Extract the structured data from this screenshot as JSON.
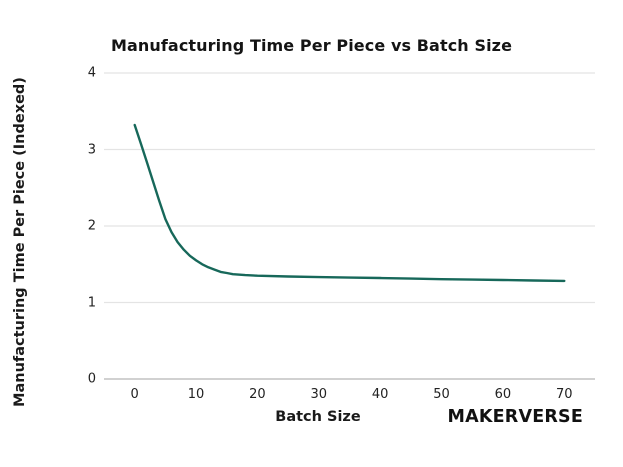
{
  "chart": {
    "title": "Manufacturing Time Per Piece vs Batch Size",
    "x_axis_label": "Batch Size",
    "y_axis_label": "Manufacturing Time Per Piece (Indexed)",
    "branding": "MAKERVERSE"
  },
  "chart_data": {
    "type": "line",
    "title": "Manufacturing Time Per Piece vs Batch Size",
    "xlabel": "Batch Size",
    "ylabel": "Manufacturing Time Per Piece (Indexed)",
    "x_ticks": [
      0,
      10,
      20,
      30,
      40,
      50,
      60,
      70
    ],
    "y_ticks": [
      0,
      1,
      2,
      3,
      4
    ],
    "xlim": [
      -5,
      75
    ],
    "ylim": [
      0,
      4
    ],
    "grid": "horizontal-only",
    "legend": false,
    "line_color": "#17685a",
    "grid_color": "#e4e4e4",
    "baseline_color": "#c2c2c2",
    "series": [
      {
        "name": "Manufacturing time per piece (indexed)",
        "points": [
          [
            0,
            3.32
          ],
          [
            1,
            3.08
          ],
          [
            2,
            2.83
          ],
          [
            3,
            2.58
          ],
          [
            4,
            2.33
          ],
          [
            5,
            2.09
          ],
          [
            6,
            1.92
          ],
          [
            7,
            1.79
          ],
          [
            8,
            1.69
          ],
          [
            9,
            1.61
          ],
          [
            10,
            1.55
          ],
          [
            11,
            1.5
          ],
          [
            12,
            1.46
          ],
          [
            13,
            1.43
          ],
          [
            14,
            1.4
          ],
          [
            15,
            1.385
          ],
          [
            16,
            1.37
          ],
          [
            18,
            1.358
          ],
          [
            20,
            1.35
          ],
          [
            25,
            1.34
          ],
          [
            30,
            1.332
          ],
          [
            35,
            1.326
          ],
          [
            40,
            1.32
          ],
          [
            45,
            1.312
          ],
          [
            50,
            1.305
          ],
          [
            55,
            1.3
          ],
          [
            60,
            1.294
          ],
          [
            65,
            1.288
          ],
          [
            70,
            1.283
          ]
        ]
      }
    ]
  }
}
